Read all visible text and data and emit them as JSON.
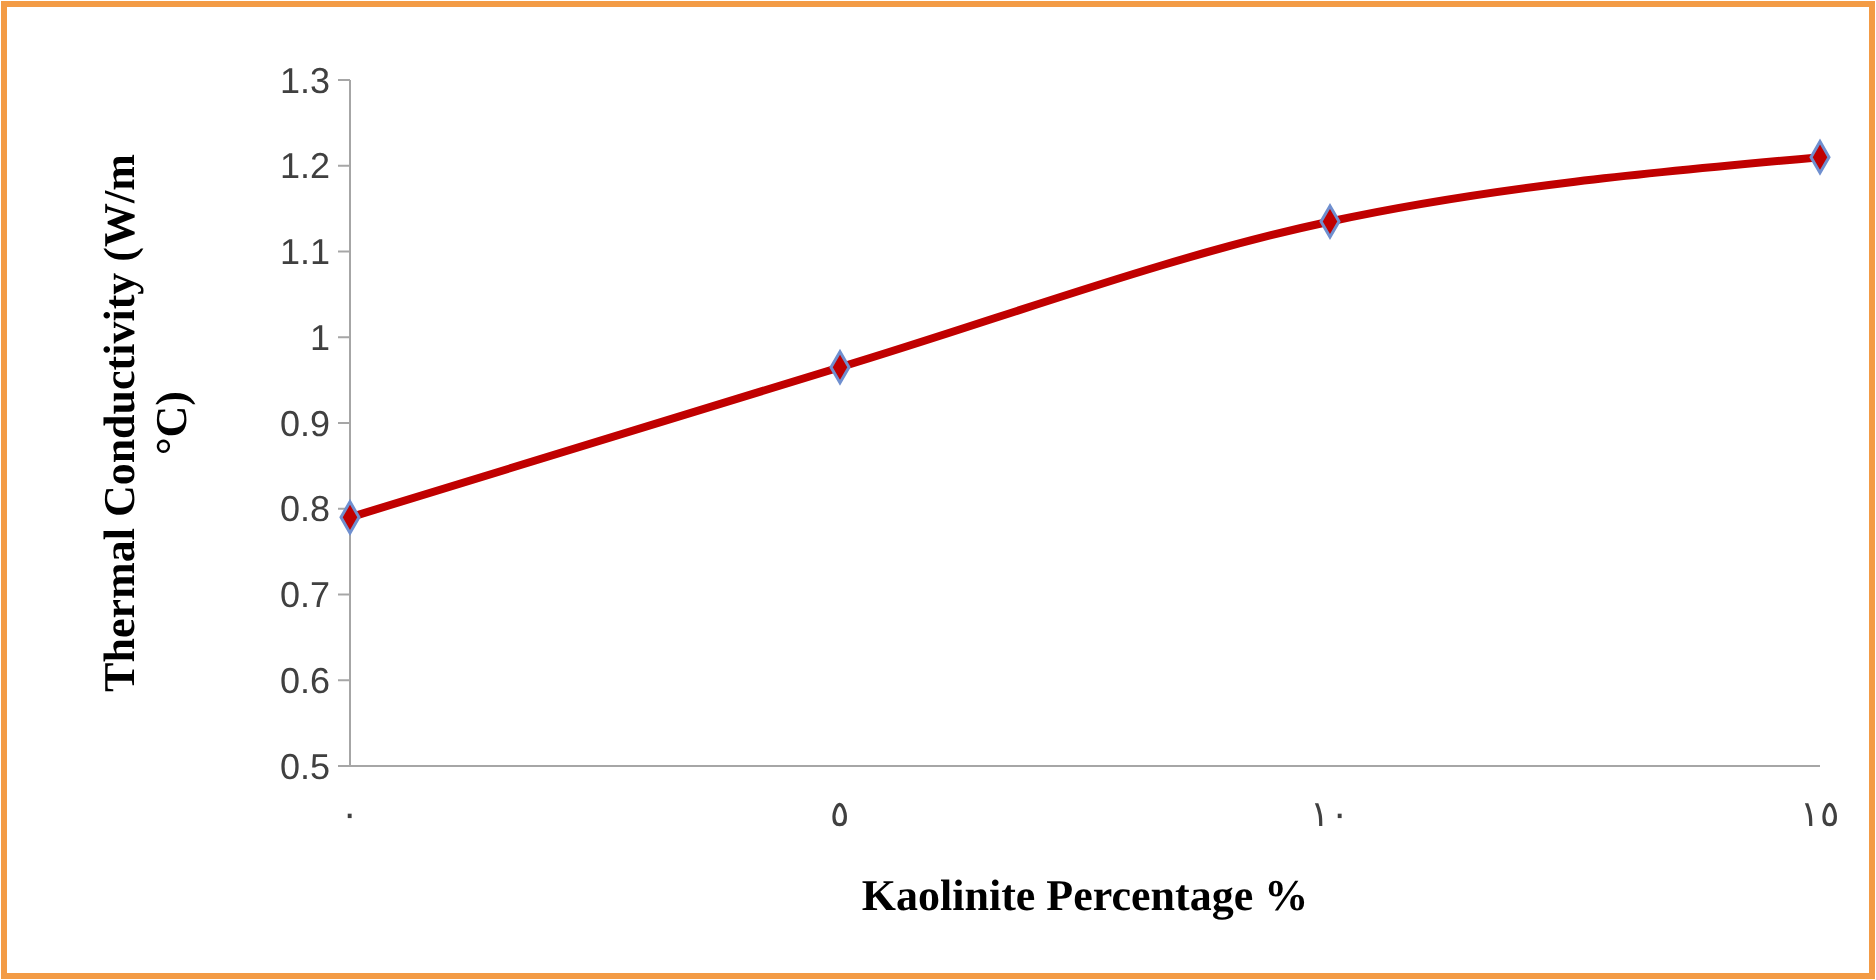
{
  "chart_data": {
    "type": "line",
    "xlabel": "Kaolinite Percentage  %",
    "ylabel": "Thermal Conductivity (W/m °C)",
    "categories": [
      "٠",
      "٥",
      "١٠",
      "١٥"
    ],
    "series": [
      {
        "color": "#c00000",
        "values": [
          0.79,
          0.965,
          1.135,
          1.21
        ]
      }
    ],
    "ylim": [
      0.5,
      1.3
    ],
    "yticks": [
      0.5,
      {
        "value": 0.6,
        "label": "0.6"
      },
      0.7,
      0.8,
      0.9,
      {
        "value": 1,
        "label": "1"
      },
      1.1,
      1.2,
      1.3
    ],
    "grid": false,
    "marker": "diamond",
    "line_style": "solid"
  }
}
